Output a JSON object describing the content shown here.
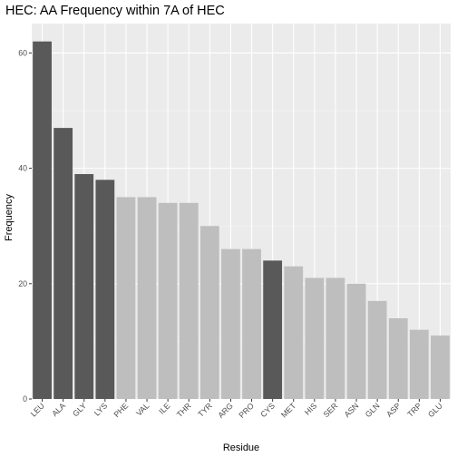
{
  "chart_data": {
    "type": "bar",
    "title": "HEC: AA Frequency within 7A of HEC",
    "xlabel": "Residue",
    "ylabel": "Frequency",
    "categories": [
      "LEU",
      "ALA",
      "GLY",
      "LYS",
      "PHE",
      "VAL",
      "ILE",
      "THR",
      "TYR",
      "ARG",
      "PRO",
      "CYS",
      "MET",
      "HIS",
      "SER",
      "ASN",
      "GLN",
      "ASP",
      "TRP",
      "GLU"
    ],
    "values": [
      62,
      47,
      39,
      38,
      35,
      35,
      34,
      34,
      30,
      26,
      26,
      24,
      23,
      21,
      21,
      20,
      17,
      14,
      12,
      11
    ],
    "highlighted": [
      true,
      true,
      true,
      true,
      false,
      false,
      false,
      false,
      false,
      false,
      false,
      true,
      false,
      false,
      false,
      false,
      false,
      false,
      false,
      false
    ],
    "colors": {
      "highlight": "#595959",
      "normal": "#bebebe",
      "panel": "#ebebeb",
      "grid_major": "#ffffff",
      "grid_minor": "#f5f5f5"
    },
    "y_ticks": [
      0,
      20,
      40,
      60
    ],
    "ylim": [
      0,
      65.1
    ],
    "grid": true,
    "legend": "none"
  }
}
